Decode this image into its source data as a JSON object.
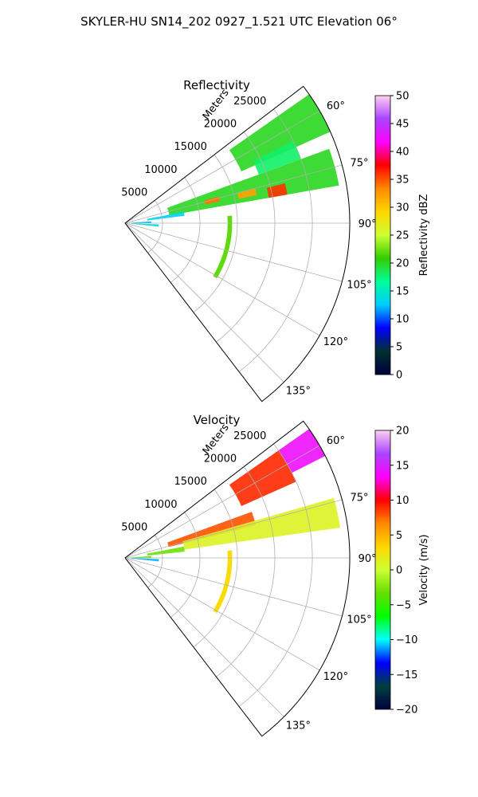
{
  "figure": {
    "suptitle": "SKYLER-HU  SN14_202  0927_1.521 UTC Elevation 06°"
  },
  "chart_data": [
    {
      "type": "heatmap",
      "title": "Reflectivity",
      "projection": "polar sector",
      "theta_range_deg": [
        52.5,
        142.5
      ],
      "theta_ticks": [
        "60°",
        "75°",
        "90°",
        "105°",
        "120°",
        "135°"
      ],
      "theta_tick_values": [
        60,
        75,
        90,
        105,
        120,
        135
      ],
      "r_max_m": 30000,
      "r_label": "Meters",
      "r_ticks": [
        "5000",
        "10000",
        "15000",
        "20000",
        "25000"
      ],
      "r_tick_values": [
        5000,
        10000,
        15000,
        20000,
        25000
      ],
      "grid": true,
      "colorbar": {
        "label": "Reflectivity dBZ",
        "min": 0,
        "max": 50,
        "ticks": [
          "0",
          "5",
          "10",
          "15",
          "20",
          "25",
          "30",
          "35",
          "40",
          "45",
          "50"
        ],
        "stops": [
          "#00003c",
          "#003030",
          "#0000ff",
          "#00ccff",
          "#00ff99",
          "#33cc00",
          "#ccff33",
          "#ffd700",
          "#ff8800",
          "#ff0000",
          "#ff00ff",
          "#aa44ff",
          "#ffd0f0"
        ]
      },
      "echo_regions": [
        {
          "theta": [
            55,
            66
          ],
          "r": [
            17000,
            30000
          ],
          "value": 20
        },
        {
          "theta": [
            64,
            70
          ],
          "r": [
            19000,
            25000
          ],
          "value": 18
        },
        {
          "theta": [
            70,
            80
          ],
          "r": [
            6000,
            29000
          ],
          "value": 20
        },
        {
          "theta": [
            74,
            77
          ],
          "r": [
            11000,
            13000
          ],
          "value": 34
        },
        {
          "theta": [
            75,
            78
          ],
          "r": [
            15500,
            18000
          ],
          "value": 32
        },
        {
          "theta": [
            76,
            80
          ],
          "r": [
            19500,
            22000
          ],
          "value": 36
        },
        {
          "theta": [
            79,
            83
          ],
          "r": [
            3000,
            8000
          ],
          "value": 13
        },
        {
          "theta": [
            86,
            90
          ],
          "r": [
            800,
            3500
          ],
          "value": 12
        },
        {
          "theta": [
            92,
            96
          ],
          "r": [
            800,
            4500
          ],
          "value": 14
        }
      ],
      "arc_feature": {
        "r": 14000,
        "theta": [
          86,
          121
        ],
        "value": 22
      }
    },
    {
      "type": "heatmap",
      "title": "Velocity",
      "projection": "polar sector",
      "theta_range_deg": [
        52.5,
        142.5
      ],
      "theta_ticks": [
        "60°",
        "75°",
        "90°",
        "105°",
        "120°",
        "135°"
      ],
      "theta_tick_values": [
        60,
        75,
        90,
        105,
        120,
        135
      ],
      "r_max_m": 30000,
      "r_label": "Meters",
      "r_ticks": [
        "5000",
        "10000",
        "15000",
        "20000",
        "25000"
      ],
      "r_tick_values": [
        5000,
        10000,
        15000,
        20000,
        25000
      ],
      "grid": true,
      "colorbar": {
        "label": "Velocity (m/s)",
        "min": -20,
        "max": 20,
        "ticks": [
          "−20",
          "−15",
          "−10",
          "−5",
          "0",
          "5",
          "10",
          "15",
          "20"
        ],
        "stops": [
          "#00003c",
          "#004040",
          "#0000ff",
          "#00ffff",
          "#00ff00",
          "#66dd00",
          "#ccff33",
          "#ffd700",
          "#ff8800",
          "#ff0000",
          "#ff00ff",
          "#aa44ff",
          "#ffd0f0"
        ]
      },
      "echo_regions": [
        {
          "theta": [
            55,
            63
          ],
          "r": [
            25000,
            30000
          ],
          "value": 14
        },
        {
          "theta": [
            55,
            66
          ],
          "r": [
            17000,
            25000
          ],
          "value": 9
        },
        {
          "theta": [
            70,
            76
          ],
          "r": [
            6000,
            18000
          ],
          "value": 8
        },
        {
          "theta": [
            74,
            82
          ],
          "r": [
            8000,
            29000
          ],
          "value": 1
        },
        {
          "theta": [
            79,
            84
          ],
          "r": [
            3000,
            8000
          ],
          "value": -3
        },
        {
          "theta": [
            86,
            90
          ],
          "r": [
            800,
            3500
          ],
          "value": -4
        },
        {
          "theta": [
            92,
            96
          ],
          "r": [
            800,
            4500
          ],
          "value": -11
        }
      ],
      "arc_feature": {
        "r": 14000,
        "theta": [
          86,
          121
        ],
        "value": 3
      }
    }
  ]
}
